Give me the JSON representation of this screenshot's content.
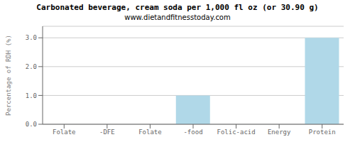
{
  "chart_data": {
    "type": "bar",
    "title": "Carbonated beverage, cream soda per 1,000 fl oz (or 30.90 g)",
    "subtitle": "www.dietandfitnesstoday.com",
    "categories": [
      "Folate",
      "-DFE",
      "Folate",
      "-food",
      "Folic-acid",
      "Energy",
      "Protein"
    ],
    "values": [
      0.0,
      0.0,
      0.0,
      1.0,
      0.0,
      0.0,
      3.0
    ],
    "color": "#b0d8e8",
    "ylabel": "Percentage of RDH (%)",
    "ylim": [
      0,
      3.4
    ],
    "yticks": [
      {
        "value": 0,
        "label": "0.0"
      },
      {
        "value": 1,
        "label": "1.0"
      },
      {
        "value": 2,
        "label": "2.0"
      },
      {
        "value": 3,
        "label": "3.0"
      }
    ],
    "grid": true
  }
}
